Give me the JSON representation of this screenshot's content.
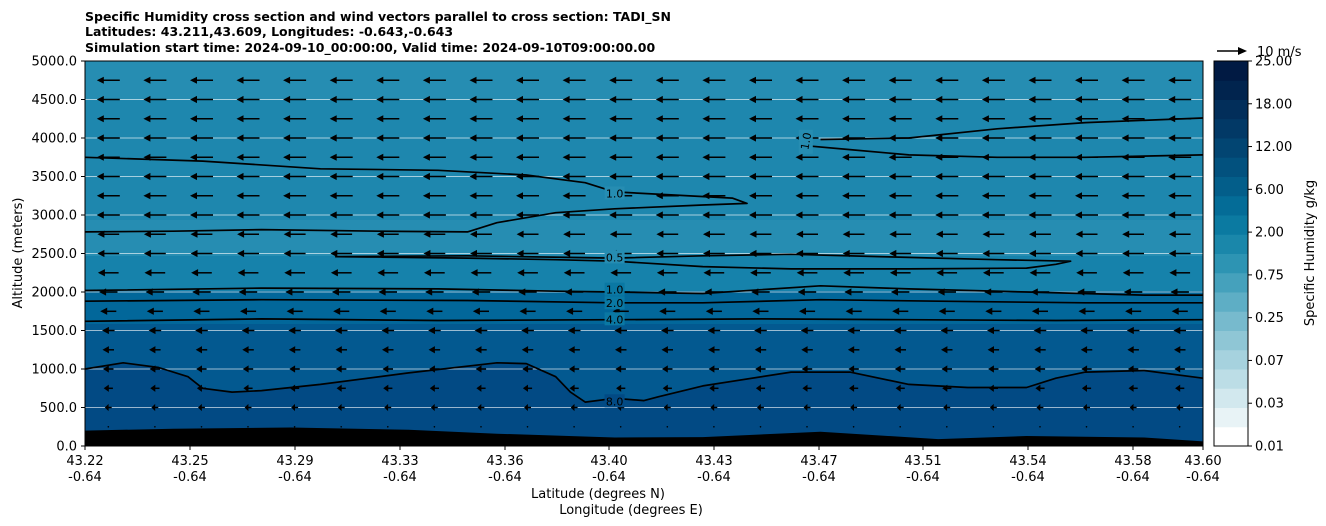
{
  "chart_data": {
    "type": "contour",
    "title_lines": [
      "Specific Humidity cross section and wind vectors parallel to cross section: TADI_SN",
      "Latitudes: 43.211,43.609, Longitudes: -0.643,-0.643",
      "Simulation start time: 2024-09-10_00:00:00, Valid time: 2024-09-10T09:00:00.00"
    ],
    "xlabel": "Latitude (degrees N)",
    "xlabel2": "Longitude (degrees E)",
    "ylabel": "Altitude (meters)",
    "xlim": [
      43.22,
      43.6
    ],
    "ylim": [
      0,
      5000
    ],
    "x_tick_labels": [
      "43.22",
      "43.25",
      "43.29",
      "43.33",
      "43.36",
      "43.40",
      "43.43",
      "43.47",
      "43.51",
      "43.54",
      "43.58",
      "43.60"
    ],
    "x_tick_lon_labels": [
      "-0.64",
      "-0.64",
      "-0.64",
      "-0.64",
      "-0.64",
      "-0.64",
      "-0.64",
      "-0.64",
      "-0.64",
      "-0.64",
      "-0.64",
      "-0.64"
    ],
    "y_ticks": [
      0,
      500,
      1000,
      1500,
      2000,
      2500,
      3000,
      3500,
      4000,
      4500,
      5000
    ],
    "y_tick_labels": [
      "0.0",
      "500.0",
      "1000.0",
      "1500.0",
      "2000.0",
      "2500.0",
      "3000.0",
      "3500.0",
      "4000.0",
      "4500.0",
      "5000.0"
    ],
    "grid": "horizontal",
    "colorbar": {
      "label": "Specific Humidity g/kg",
      "tick_labels": [
        "0.01",
        "0.03",
        "0.07",
        "0.25",
        "0.75",
        "2.00",
        "6.00",
        "12.00",
        "18.00",
        "25.00"
      ],
      "colors": [
        "#ffffff",
        "#e8f3f6",
        "#d2e8ee",
        "#bcdde6",
        "#a6d2de",
        "#8fc6d5",
        "#77bacd",
        "#5eaec5",
        "#45a1bc",
        "#2d94b3",
        "#1a87aa",
        "#0b7aa1",
        "#046c97",
        "#035e8a",
        "#02517e",
        "#024572",
        "#023966",
        "#022e5a",
        "#01244e",
        "#011a43"
      ]
    },
    "wind_key": {
      "label": "10 m/s",
      "speed": 10
    },
    "contour_labels": [
      {
        "text": "1.0",
        "x": 43.4,
        "y": 3280
      },
      {
        "text": "1.0",
        "x": 43.465,
        "y": 3950
      },
      {
        "text": "0.5",
        "x": 43.4,
        "y": 2450
      },
      {
        "text": "1.0",
        "x": 43.4,
        "y": 2030
      },
      {
        "text": "2.0",
        "x": 43.4,
        "y": 1855
      },
      {
        "text": "4.0",
        "x": 43.4,
        "y": 1645
      },
      {
        "text": "8.0",
        "x": 43.4,
        "y": 580
      }
    ],
    "contours": [
      {
        "level": "1.0",
        "points": [
          [
            43.22,
            3750
          ],
          [
            43.26,
            3700
          ],
          [
            43.3,
            3600
          ],
          [
            43.34,
            3580
          ],
          [
            43.37,
            3520
          ],
          [
            43.39,
            3420
          ],
          [
            43.4,
            3300
          ],
          [
            43.42,
            3260
          ],
          [
            43.44,
            3220
          ],
          [
            43.445,
            3150
          ],
          [
            43.43,
            3130
          ],
          [
            43.4,
            3080
          ],
          [
            43.38,
            3030
          ],
          [
            43.36,
            2900
          ],
          [
            43.35,
            2780
          ],
          [
            43.32,
            2790
          ],
          [
            43.28,
            2810
          ],
          [
            43.25,
            2790
          ],
          [
            43.22,
            2780
          ]
        ]
      },
      {
        "level": "1.0",
        "points": [
          [
            43.47,
            3980
          ],
          [
            43.5,
            4000
          ],
          [
            43.53,
            4120
          ],
          [
            43.56,
            4200
          ],
          [
            43.6,
            4260
          ]
        ]
      },
      {
        "level": "1.0",
        "points": [
          [
            43.465,
            3900
          ],
          [
            43.48,
            3850
          ],
          [
            43.5,
            3780
          ],
          [
            43.53,
            3750
          ],
          [
            43.56,
            3750
          ],
          [
            43.6,
            3780
          ]
        ]
      },
      {
        "level": "0.5",
        "points": [
          [
            43.305,
            2460
          ],
          [
            43.35,
            2440
          ],
          [
            43.38,
            2420
          ],
          [
            43.4,
            2400
          ],
          [
            43.43,
            2330
          ],
          [
            43.46,
            2300
          ],
          [
            43.5,
            2300
          ],
          [
            43.54,
            2310
          ],
          [
            43.55,
            2360
          ],
          [
            43.555,
            2400
          ],
          [
            43.53,
            2420
          ],
          [
            43.49,
            2460
          ],
          [
            43.46,
            2490
          ],
          [
            43.43,
            2470
          ],
          [
            43.4,
            2440
          ],
          [
            43.35,
            2470
          ],
          [
            43.305,
            2460
          ]
        ]
      },
      {
        "level": "1.0",
        "points": [
          [
            43.22,
            2020
          ],
          [
            43.28,
            2050
          ],
          [
            43.34,
            2040
          ],
          [
            43.38,
            2010
          ],
          [
            43.4,
            2000
          ],
          [
            43.43,
            1980
          ],
          [
            43.47,
            2080
          ],
          [
            43.5,
            2040
          ],
          [
            43.54,
            2000
          ],
          [
            43.58,
            1960
          ],
          [
            43.6,
            1960
          ]
        ]
      },
      {
        "level": "2.0",
        "points": [
          [
            43.22,
            1880
          ],
          [
            43.28,
            1900
          ],
          [
            43.35,
            1890
          ],
          [
            43.4,
            1860
          ],
          [
            43.43,
            1860
          ],
          [
            43.47,
            1900
          ],
          [
            43.51,
            1880
          ],
          [
            43.56,
            1860
          ],
          [
            43.6,
            1860
          ]
        ]
      },
      {
        "level": "4.0",
        "points": [
          [
            43.22,
            1620
          ],
          [
            43.28,
            1650
          ],
          [
            43.34,
            1630
          ],
          [
            43.4,
            1640
          ],
          [
            43.45,
            1650
          ],
          [
            43.5,
            1640
          ],
          [
            43.55,
            1630
          ],
          [
            43.6,
            1640
          ]
        ]
      },
      {
        "level": "8.0",
        "points": [
          [
            43.22,
            1000
          ],
          [
            43.233,
            1080
          ],
          [
            43.245,
            1020
          ],
          [
            43.255,
            900
          ],
          [
            43.26,
            750
          ],
          [
            43.27,
            700
          ],
          [
            43.28,
            720
          ],
          [
            43.3,
            800
          ],
          [
            43.33,
            950
          ],
          [
            43.36,
            1080
          ],
          [
            43.37,
            1070
          ],
          [
            43.38,
            900
          ],
          [
            43.385,
            700
          ],
          [
            43.39,
            570
          ],
          [
            43.4,
            620
          ],
          [
            43.41,
            590
          ],
          [
            43.415,
            640
          ],
          [
            43.43,
            780
          ],
          [
            43.46,
            960
          ],
          [
            43.48,
            960
          ],
          [
            43.5,
            800
          ],
          [
            43.52,
            760
          ],
          [
            43.54,
            760
          ],
          [
            43.55,
            880
          ],
          [
            43.56,
            960
          ],
          [
            43.58,
            980
          ],
          [
            43.6,
            880
          ]
        ]
      }
    ],
    "terrain": [
      [
        43.22,
        200
      ],
      [
        43.25,
        225
      ],
      [
        43.29,
        240
      ],
      [
        43.33,
        210
      ],
      [
        43.36,
        160
      ],
      [
        43.4,
        110
      ],
      [
        43.43,
        115
      ],
      [
        43.47,
        185
      ],
      [
        43.51,
        90
      ],
      [
        43.54,
        130
      ],
      [
        43.58,
        110
      ],
      [
        43.6,
        60
      ]
    ],
    "winds": [
      {
        "alt": 250,
        "u": 0
      },
      {
        "alt": 500,
        "u": -0.6
      },
      {
        "alt": 750,
        "u": -0.8
      },
      {
        "alt": 1000,
        "u": -0.9
      },
      {
        "alt": 1250,
        "u": -1.0
      },
      {
        "alt": 1500,
        "u": -1.1
      },
      {
        "alt": 1750,
        "u": -1.4
      },
      {
        "alt": 2000,
        "u": -1.6
      },
      {
        "alt": 2250,
        "u": -1.8
      },
      {
        "alt": 2500,
        "u": -1.9
      },
      {
        "alt": 2750,
        "u": -1.9
      },
      {
        "alt": 3000,
        "u": -2.0
      },
      {
        "alt": 3250,
        "u": -2.0
      },
      {
        "alt": 3500,
        "u": -2.0
      },
      {
        "alt": 3750,
        "u": -2.0
      },
      {
        "alt": 4000,
        "u": -2.0
      },
      {
        "alt": 4250,
        "u": -2.0
      },
      {
        "alt": 4500,
        "u": -2.0
      },
      {
        "alt": 4750,
        "u": -2.0
      }
    ],
    "wind_columns": 24
  }
}
